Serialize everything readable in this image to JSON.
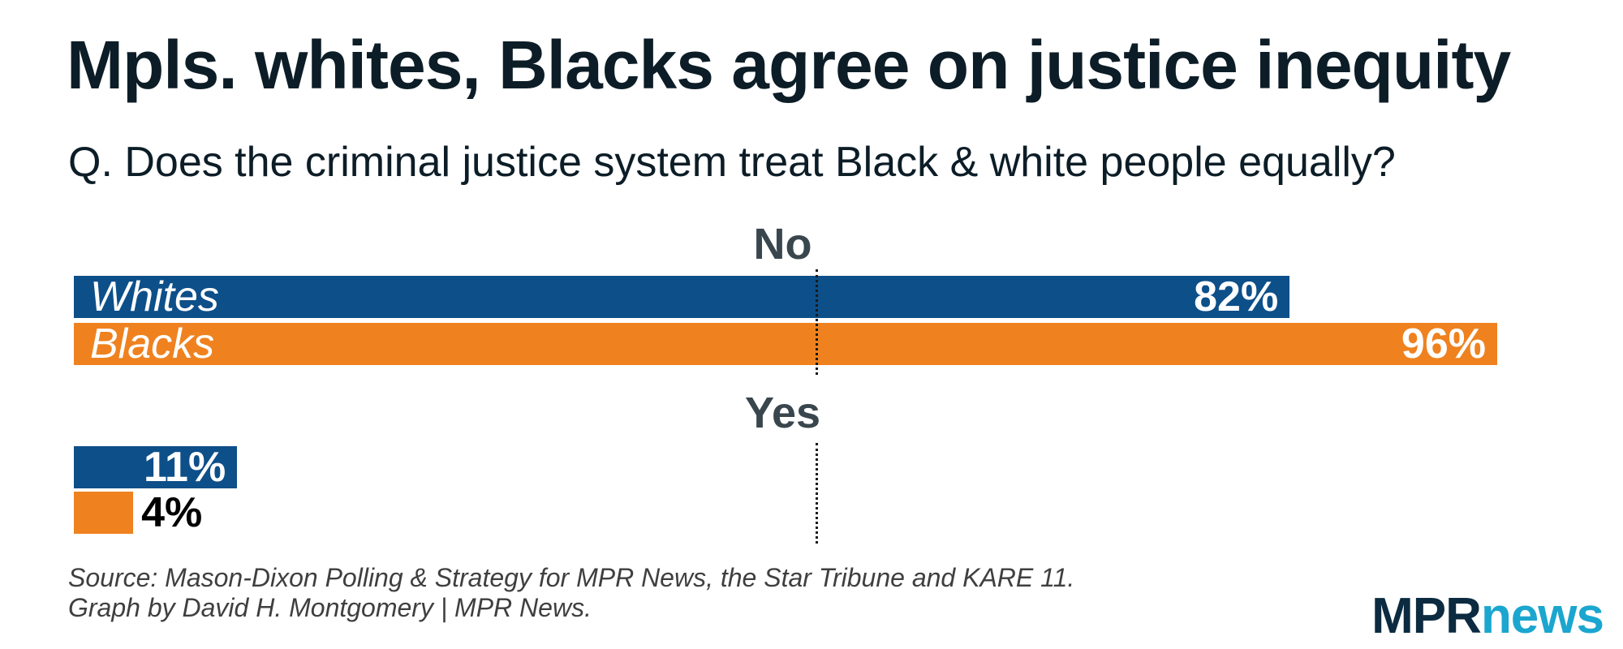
{
  "chart_data": {
    "type": "bar",
    "title": "Mpls. whites, Blacks agree on justice inequity",
    "subtitle": "Q. Does the criminal justice system treat Black & white people equally?",
    "unit": "%",
    "xlim": [
      0,
      100
    ],
    "reference_line": 50,
    "series": [
      {
        "name": "Whites",
        "color": "#0d4f89"
      },
      {
        "name": "Blacks",
        "color": "#ef821f"
      }
    ],
    "groups": [
      {
        "label": "No",
        "bars": [
          {
            "series": "Whites",
            "value": 82,
            "label": "82%"
          },
          {
            "series": "Blacks",
            "value": 96,
            "label": "96%"
          }
        ]
      },
      {
        "label": "Yes",
        "bars": [
          {
            "series": "Whites",
            "value": 11,
            "label": "11%"
          },
          {
            "series": "Blacks",
            "value": 4,
            "label": "4%"
          }
        ]
      }
    ]
  },
  "footer": {
    "source_line1": "Source: Mason-Dixon Polling & Strategy for MPR News, the Star Tribune and KARE 11.",
    "source_line2": "Graph by David H. Montgomery | MPR News."
  },
  "logo": {
    "part1": "MPR",
    "part2": "news"
  }
}
